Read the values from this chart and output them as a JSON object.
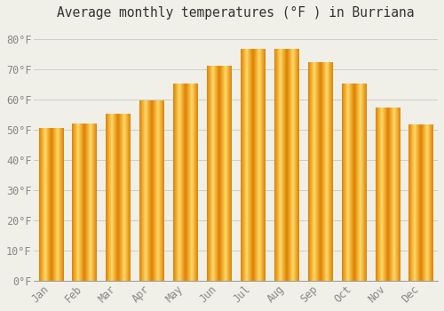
{
  "title": "Average monthly temperatures (°F ) in Burriana",
  "months": [
    "Jan",
    "Feb",
    "Mar",
    "Apr",
    "May",
    "Jun",
    "Jul",
    "Aug",
    "Sep",
    "Oct",
    "Nov",
    "Dec"
  ],
  "values": [
    50.5,
    52.0,
    55.0,
    59.5,
    65.0,
    71.0,
    76.5,
    76.5,
    72.0,
    65.0,
    57.0,
    51.5
  ],
  "bar_color_main": "#FFA500",
  "bar_color_light": "#FFD966",
  "bar_color_dark": "#E08000",
  "background_color": "#F0F0E8",
  "ytick_labels": [
    "0°F",
    "10°F",
    "20°F",
    "30°F",
    "40°F",
    "50°F",
    "60°F",
    "70°F",
    "80°F"
  ],
  "ytick_values": [
    0,
    10,
    20,
    30,
    40,
    50,
    60,
    70,
    80
  ],
  "ylim": [
    0,
    84
  ],
  "grid_color": "#CCCCCC",
  "tick_label_color": "#888888",
  "title_color": "#333333",
  "title_fontsize": 10.5,
  "tick_fontsize": 8.5,
  "bar_width": 0.72
}
